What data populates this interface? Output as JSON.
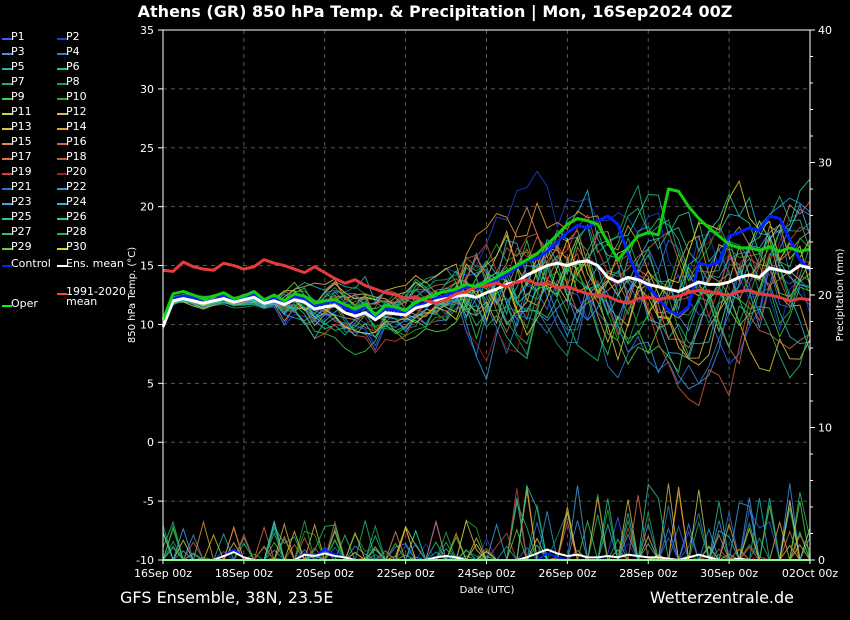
{
  "title": "Athens  (GR)  850 hPa Temp. & Precipitation | Mon, 16Sep2024 00Z",
  "footer_left": "GFS Ensemble, 38N, 23.5E",
  "footer_right": "Wetterzentrale.de",
  "chart_data": {
    "type": "line",
    "ylabel": "850 hPa Temp. (°C)",
    "y2label": "Precipitation (mm)",
    "xlabel": "Date (UTC)",
    "ylim": [
      -10,
      35
    ],
    "y2lim": [
      0,
      40
    ],
    "yticks": [
      -10,
      -5,
      0,
      5,
      10,
      15,
      20,
      25,
      30,
      35
    ],
    "y2ticks": [
      0,
      10,
      20,
      30,
      40
    ],
    "xlim": [
      0,
      16
    ],
    "xticks": [
      0,
      2,
      4,
      6,
      8,
      10,
      12,
      14,
      16
    ],
    "xtick_labels": [
      "16Sep 00z",
      "18Sep 00z",
      "20Sep 00z",
      "22Sep 00z",
      "24Sep 00z",
      "26Sep 00z",
      "28Sep 00z",
      "30Sep 00z",
      "02Oct 00z"
    ],
    "grid": true,
    "legend": {
      "placement": "left",
      "entries": [
        {
          "label": "P1",
          "color": "#3a5fff"
        },
        {
          "label": "P2",
          "color": "#1f3fd6"
        },
        {
          "label": "P3",
          "color": "#4a90e2"
        },
        {
          "label": "P4",
          "color": "#2b7fcf"
        },
        {
          "label": "P5",
          "color": "#1fb5b5"
        },
        {
          "label": "P6",
          "color": "#20c080"
        },
        {
          "label": "P7",
          "color": "#21b06a"
        },
        {
          "label": "P8",
          "color": "#1a9a66"
        },
        {
          "label": "P9",
          "color": "#3ad13a"
        },
        {
          "label": "P10",
          "color": "#20b020"
        },
        {
          "label": "P11",
          "color": "#c8d84a"
        },
        {
          "label": "P12",
          "color": "#d9b84a"
        },
        {
          "label": "P13",
          "color": "#e0c040"
        },
        {
          "label": "P14",
          "color": "#e8a030"
        },
        {
          "label": "P15",
          "color": "#d8905a"
        },
        {
          "label": "P16",
          "color": "#c07040"
        },
        {
          "label": "P17",
          "color": "#e07050"
        },
        {
          "label": "P18",
          "color": "#c85a3a"
        },
        {
          "label": "P19",
          "color": "#d94040"
        },
        {
          "label": "P20",
          "color": "#a02020"
        },
        {
          "label": "P21",
          "color": "#2f6fe0"
        },
        {
          "label": "P22",
          "color": "#2a9de0"
        },
        {
          "label": "P23",
          "color": "#40a8e8"
        },
        {
          "label": "P24",
          "color": "#30b8c8"
        },
        {
          "label": "P25",
          "color": "#20c8a0"
        },
        {
          "label": "P26",
          "color": "#20d0a0"
        },
        {
          "label": "P27",
          "color": "#30c070"
        },
        {
          "label": "P28",
          "color": "#28b050"
        },
        {
          "label": "P29",
          "color": "#60d040"
        },
        {
          "label": "P30",
          "color": "#e0d020"
        },
        {
          "label": "Control",
          "color": "#0020ff"
        },
        {
          "label": "Ens. mean",
          "color": "#ffffff"
        },
        {
          "label": "1991-2020\nmean",
          "color": "#ff4040"
        },
        {
          "label": "Oper",
          "color": "#00ff00"
        }
      ]
    },
    "x": [
      0,
      0.25,
      0.5,
      0.75,
      1,
      1.25,
      1.5,
      1.75,
      2,
      2.25,
      2.5,
      2.75,
      3,
      3.25,
      3.5,
      3.75,
      4,
      4.25,
      4.5,
      4.75,
      5,
      5.25,
      5.5,
      5.75,
      6,
      6.25,
      6.5,
      6.75,
      7,
      7.25,
      7.5,
      7.75,
      8,
      8.25,
      8.5,
      8.75,
      9,
      9.25,
      9.5,
      9.75,
      10,
      10.25,
      10.5,
      10.75,
      11,
      11.25,
      11.5,
      11.75,
      12,
      12.25,
      12.5,
      12.75,
      13,
      13.25,
      13.5,
      13.75,
      14,
      14.25,
      14.5,
      14.75,
      15,
      15.25,
      15.5,
      15.75,
      16
    ],
    "series": [
      {
        "name": "Control",
        "color": "#0020ff",
        "width": 3,
        "values": [
          9.8,
          12.2,
          12.4,
          12.3,
          11.8,
          12.0,
          12.5,
          12.0,
          12.2,
          12.6,
          11.9,
          12.3,
          11.8,
          12.4,
          12.2,
          11.6,
          11.8,
          12.0,
          11.4,
          11.0,
          11.5,
          10.6,
          11.4,
          11.2,
          10.9,
          11.6,
          11.8,
          12.2,
          12.5,
          12.8,
          13.2,
          13.0,
          13.4,
          13.8,
          14.2,
          14.8,
          15.4,
          15.6,
          16.2,
          17.0,
          17.8,
          18.4,
          18.2,
          18.8,
          19.2,
          18.5,
          16.0,
          14.0,
          13.2,
          12.2,
          11.2,
          10.8,
          11.5,
          15.2,
          15.0,
          15.3,
          17.5,
          17.8,
          18.2,
          18.0,
          19.2,
          19.0,
          17.2,
          15.5,
          14.6
        ]
      },
      {
        "name": "Ens. mean",
        "color": "#ffffff",
        "width": 3,
        "values": [
          9.8,
          12.0,
          12.2,
          12.0,
          11.8,
          12.0,
          12.2,
          11.9,
          12.1,
          12.3,
          11.8,
          12.0,
          11.7,
          12.1,
          11.9,
          11.3,
          11.5,
          11.6,
          11.0,
          10.7,
          11.0,
          10.4,
          11.0,
          10.9,
          10.8,
          11.4,
          11.6,
          12.0,
          12.2,
          12.4,
          12.5,
          12.3,
          12.7,
          13.0,
          13.4,
          13.6,
          14.2,
          14.6,
          15.0,
          15.2,
          15.0,
          15.3,
          15.4,
          15.0,
          14.0,
          13.6,
          14.0,
          13.8,
          13.4,
          13.2,
          13.0,
          12.8,
          13.2,
          13.6,
          13.4,
          13.4,
          13.6,
          14.0,
          14.2,
          14.0,
          14.8,
          14.6,
          14.4,
          15.0,
          14.8
        ]
      },
      {
        "name": "1991-2020 mean",
        "color": "#e83a3a",
        "width": 3,
        "values": [
          14.6,
          14.5,
          15.3,
          14.9,
          14.7,
          14.6,
          15.2,
          15.0,
          14.7,
          14.9,
          15.5,
          15.2,
          15.0,
          14.7,
          14.4,
          14.9,
          14.4,
          13.9,
          13.5,
          13.8,
          13.3,
          13.0,
          12.7,
          12.5,
          12.2,
          12.3,
          12.0,
          11.8,
          12.1,
          12.6,
          12.8,
          13.2,
          13.3,
          13.5,
          13.2,
          13.6,
          13.8,
          13.4,
          13.5,
          13.1,
          13.2,
          12.9,
          12.6,
          12.5,
          12.4,
          12.0,
          11.8,
          12.2,
          12.3,
          12.1,
          12.3,
          12.4,
          12.7,
          12.9,
          12.8,
          12.6,
          12.5,
          12.8,
          12.9,
          12.6,
          12.5,
          12.3,
          12.0,
          12.2,
          12.1
        ]
      },
      {
        "name": "Oper",
        "color": "#10d010",
        "width": 3,
        "values": [
          10.4,
          12.6,
          12.8,
          12.5,
          12.2,
          12.4,
          12.7,
          12.2,
          12.4,
          12.8,
          12.1,
          12.5,
          12.0,
          12.6,
          12.4,
          11.8,
          12.0,
          12.1,
          11.7,
          11.3,
          11.7,
          10.8,
          11.6,
          11.5,
          11.2,
          11.9,
          12.2,
          12.6,
          12.8,
          13.0,
          13.4,
          13.2,
          13.6,
          14.0,
          14.5,
          15.0,
          15.5,
          16.0,
          16.8,
          17.6,
          18.5,
          19.0,
          18.8,
          18.5,
          17.0,
          15.5,
          16.5,
          17.5,
          17.8,
          17.6,
          21.5,
          21.3,
          20.0,
          19.0,
          18.2,
          17.5,
          16.8,
          16.5,
          16.5,
          16.3,
          16.6,
          16.2,
          16.5,
          16.2,
          16.4
        ]
      }
    ],
    "precip_series": [
      {
        "name": "Control",
        "color": "#0020ff",
        "values": [
          0,
          0,
          0,
          0,
          0,
          0,
          0.3,
          0.8,
          0.2,
          0,
          0,
          0,
          0,
          0,
          0.5,
          0.3,
          0.8,
          0.4,
          0.2,
          0,
          0,
          0,
          0,
          0,
          0,
          0,
          0,
          0,
          0,
          0,
          0,
          0,
          0,
          0,
          0,
          0,
          0,
          0,
          0.5,
          0.2,
          0,
          0,
          0,
          0,
          0,
          0,
          0,
          0,
          0,
          0,
          0,
          0,
          0,
          0,
          0,
          0,
          0,
          0,
          0,
          0,
          0,
          0,
          0,
          0,
          0
        ]
      },
      {
        "name": "Ens. mean",
        "color": "#ffffff",
        "values": [
          0,
          0,
          0,
          0,
          0,
          0,
          0.3,
          0.6,
          0.2,
          0,
          0,
          0,
          0,
          0,
          0.4,
          0.3,
          0.5,
          0.3,
          0.2,
          0,
          0,
          0,
          0,
          0,
          0,
          0,
          0,
          0.2,
          0.3,
          0.2,
          0,
          0,
          0,
          0,
          0,
          0,
          0.2,
          0.5,
          0.8,
          0.5,
          0.3,
          0.4,
          0.2,
          0.2,
          0.3,
          0.2,
          0.4,
          0.3,
          0.2,
          0.2,
          0.1,
          0,
          0.2,
          0.4,
          0.2,
          0,
          0,
          0.1,
          0,
          0,
          0,
          0,
          0,
          0,
          0
        ]
      },
      {
        "name": "Oper",
        "color": "#00ff00",
        "values": [
          0,
          0,
          0,
          0,
          0,
          0,
          0,
          0,
          0,
          0,
          0,
          0,
          0,
          0,
          0,
          0,
          0,
          0,
          0,
          0,
          0,
          0,
          0,
          0,
          0,
          0,
          0,
          0,
          0,
          0,
          0,
          0,
          0,
          0,
          0,
          0,
          0,
          0,
          0,
          0,
          0,
          0,
          0,
          0,
          0,
          0,
          0,
          0,
          0,
          0,
          0,
          0,
          0,
          0,
          0,
          0,
          0,
          0,
          0,
          0,
          0,
          0,
          0,
          0,
          0
        ]
      }
    ]
  }
}
